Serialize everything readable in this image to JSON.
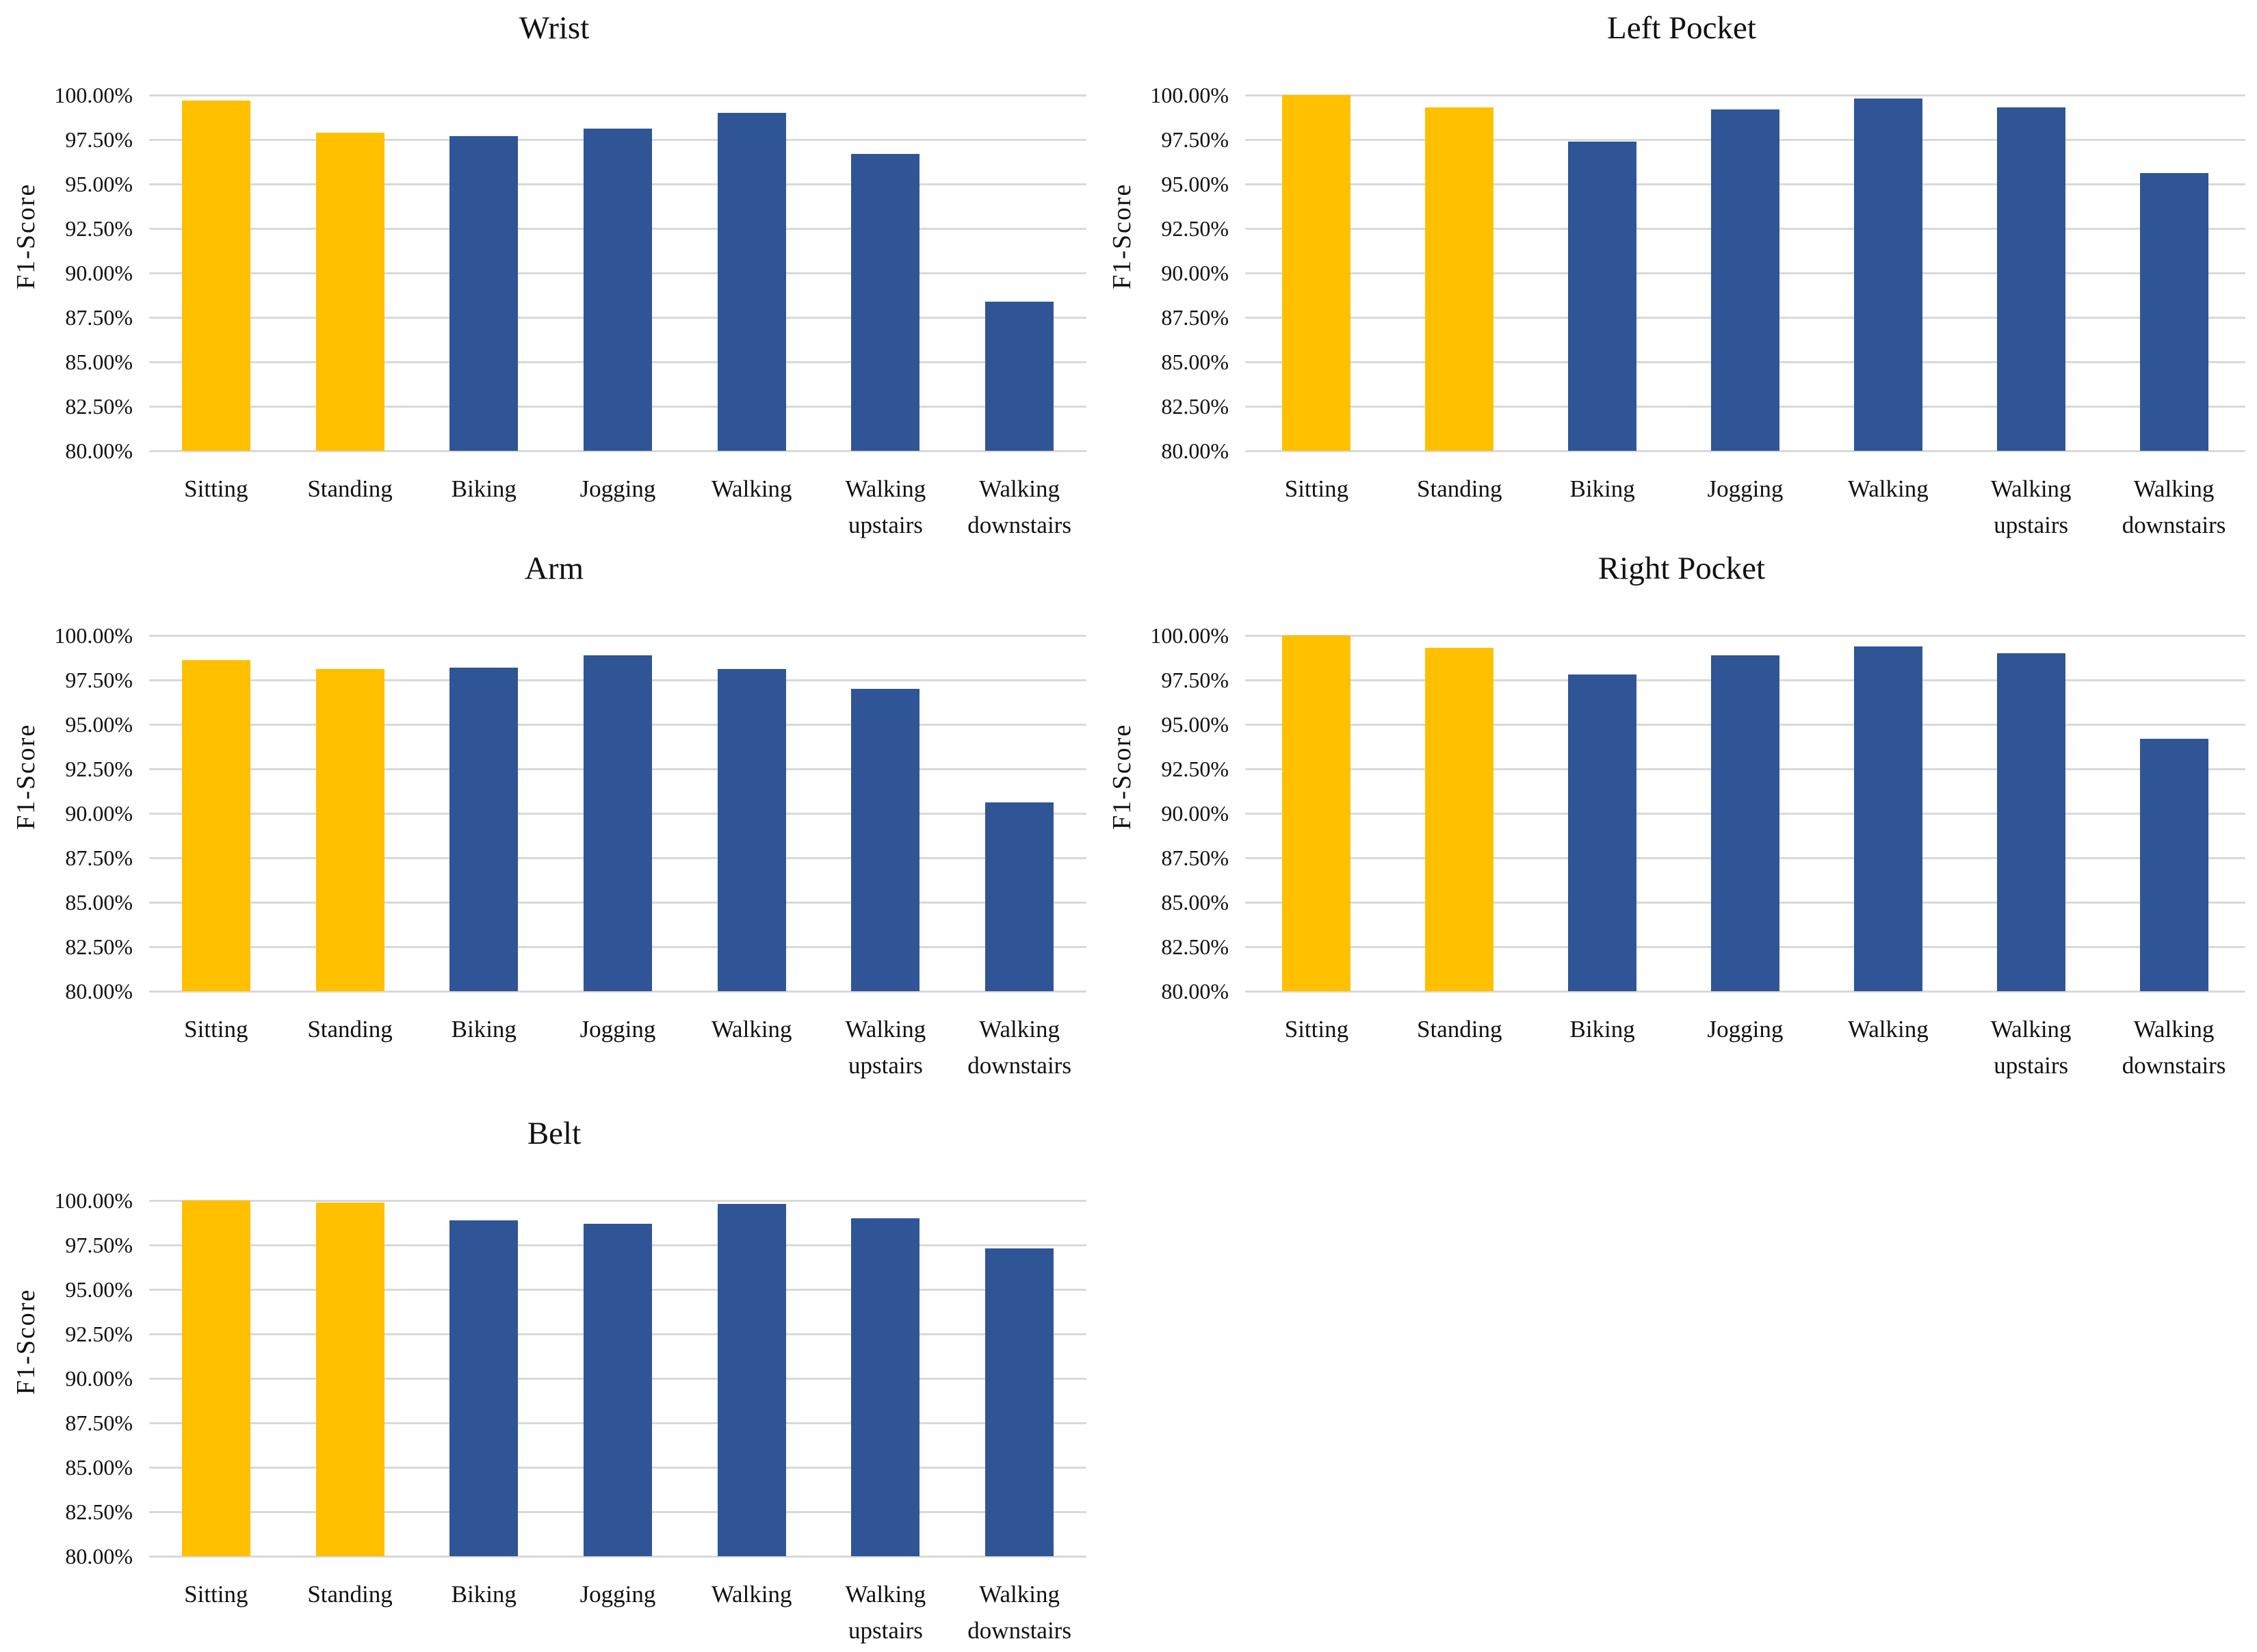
{
  "colors": {
    "gold": "#FFC000",
    "blue": "#2F5597",
    "gridline": "#D9D9D9",
    "text": "#000000",
    "background": "#FFFFFF"
  },
  "shared": {
    "ylabel": "F1-Score",
    "categories": [
      "Sitting",
      "Standing",
      "Biking",
      "Jogging",
      "Walking",
      "Walking upstairs",
      "Walking downstairs"
    ],
    "ytick_labels": [
      "100.00%",
      "97.50%",
      "95.00%",
      "92.50%",
      "90.00%",
      "87.50%",
      "85.00%",
      "82.50%",
      "80.00%"
    ]
  },
  "chart_data": [
    {
      "type": "bar",
      "title": "Wrist",
      "xlabel": "",
      "ylabel": "F1-Score",
      "categories": [
        "Sitting",
        "Standing",
        "Biking",
        "Jogging",
        "Walking",
        "Walking upstairs",
        "Walking downstairs"
      ],
      "values": [
        99.7,
        97.9,
        97.7,
        98.1,
        99.0,
        96.7,
        88.4
      ],
      "bar_colors": [
        "gold",
        "gold",
        "blue",
        "blue",
        "blue",
        "blue",
        "blue"
      ],
      "ylim": [
        80,
        100
      ],
      "ytick_step": 2.5,
      "ytick_labels": [
        "100.00%",
        "97.50%",
        "95.00%",
        "92.50%",
        "90.00%",
        "87.50%",
        "85.00%",
        "82.50%",
        "80.00%"
      ],
      "grid": true,
      "legend": "none"
    },
    {
      "type": "bar",
      "title": "Left Pocket",
      "xlabel": "",
      "ylabel": "F1-Score",
      "categories": [
        "Sitting",
        "Standing",
        "Biking",
        "Jogging",
        "Walking",
        "Walking upstairs",
        "Walking downstairs"
      ],
      "values": [
        100.0,
        99.3,
        97.4,
        99.2,
        99.8,
        99.3,
        95.6
      ],
      "bar_colors": [
        "gold",
        "gold",
        "blue",
        "blue",
        "blue",
        "blue",
        "blue"
      ],
      "ylim": [
        80,
        100
      ],
      "ytick_step": 2.5,
      "ytick_labels": [
        "100.00%",
        "97.50%",
        "95.00%",
        "92.50%",
        "90.00%",
        "87.50%",
        "85.00%",
        "82.50%",
        "80.00%"
      ],
      "grid": true,
      "legend": "none"
    },
    {
      "type": "bar",
      "title": "Arm",
      "xlabel": "",
      "ylabel": "F1-Score",
      "categories": [
        "Sitting",
        "Standing",
        "Biking",
        "Jogging",
        "Walking",
        "Walking upstairs",
        "Walking downstairs"
      ],
      "values": [
        98.6,
        98.1,
        98.2,
        98.9,
        98.1,
        97.0,
        90.6
      ],
      "bar_colors": [
        "gold",
        "gold",
        "blue",
        "blue",
        "blue",
        "blue",
        "blue"
      ],
      "ylim": [
        80,
        100
      ],
      "ytick_step": 2.5,
      "ytick_labels": [
        "100.00%",
        "97.50%",
        "95.00%",
        "92.50%",
        "90.00%",
        "87.50%",
        "85.00%",
        "82.50%",
        "80.00%"
      ],
      "grid": true,
      "legend": "none"
    },
    {
      "type": "bar",
      "title": "Right Pocket",
      "xlabel": "",
      "ylabel": "F1-Score",
      "categories": [
        "Sitting",
        "Standing",
        "Biking",
        "Jogging",
        "Walking",
        "Walking upstairs",
        "Walking downstairs"
      ],
      "values": [
        100.0,
        99.3,
        97.8,
        98.9,
        99.4,
        99.0,
        94.2
      ],
      "bar_colors": [
        "gold",
        "gold",
        "blue",
        "blue",
        "blue",
        "blue",
        "blue"
      ],
      "ylim": [
        80,
        100
      ],
      "ytick_step": 2.5,
      "ytick_labels": [
        "100.00%",
        "97.50%",
        "95.00%",
        "92.50%",
        "90.00%",
        "87.50%",
        "85.00%",
        "82.50%",
        "80.00%"
      ],
      "grid": true,
      "legend": "none"
    },
    {
      "type": "bar",
      "title": "Belt",
      "xlabel": "",
      "ylabel": "F1-Score",
      "categories": [
        "Sitting",
        "Standing",
        "Biking",
        "Jogging",
        "Walking",
        "Walking upstairs",
        "Walking downstairs"
      ],
      "values": [
        100.0,
        99.9,
        98.9,
        98.7,
        99.8,
        99.0,
        97.3
      ],
      "bar_colors": [
        "gold",
        "gold",
        "blue",
        "blue",
        "blue",
        "blue",
        "blue"
      ],
      "ylim": [
        80,
        100
      ],
      "ytick_step": 2.5,
      "ytick_labels": [
        "100.00%",
        "97.50%",
        "95.00%",
        "92.50%",
        "90.00%",
        "87.50%",
        "85.00%",
        "82.50%",
        "80.00%"
      ],
      "grid": true,
      "legend": "none"
    }
  ]
}
